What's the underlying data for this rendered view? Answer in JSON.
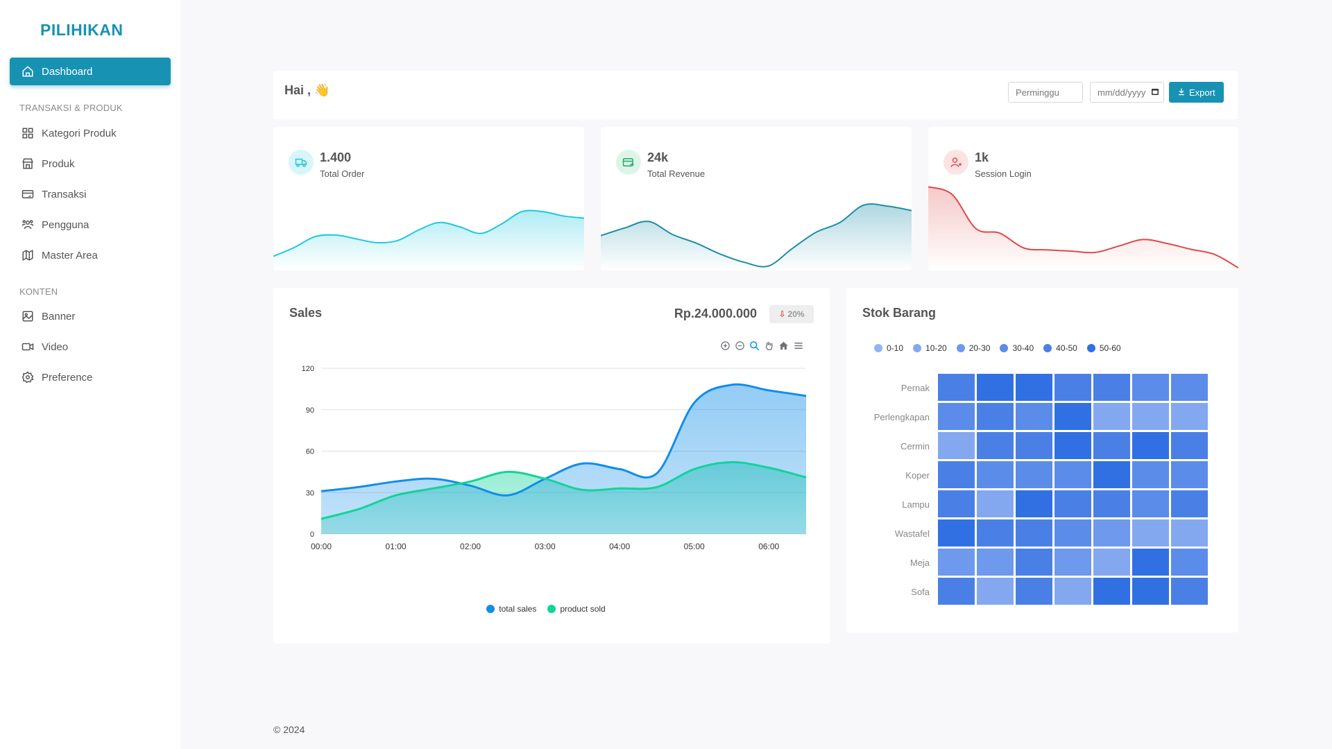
{
  "app": {
    "logo": "PILIHIKAN"
  },
  "sidebar": {
    "dashboard": "Dashboard",
    "section_transaksi": "TRANSAKSI & PRODUK",
    "kategori": "Kategori Produk",
    "produk": "Produk",
    "transaksi": "Transaksi",
    "pengguna": "Pengguna",
    "master_area": "Master Area",
    "section_konten": "KONTEN",
    "banner": "Banner",
    "video": "Video",
    "preference": "Preference"
  },
  "header": {
    "greeting": "Hai , 👋",
    "period_select": "Perminggu",
    "date_placeholder": "mm/dd/yyyy",
    "export_label": "Export"
  },
  "stats": {
    "orders": {
      "value": "1.400",
      "label": "Total Order",
      "color": "#1ec8e0"
    },
    "revenue": {
      "value": "24k",
      "label": "Total Revenue",
      "color": "#1b8ea8"
    },
    "sessions": {
      "value": "1k",
      "label": "Session Login",
      "color": "#e04848"
    }
  },
  "sales": {
    "title": "Sales",
    "amount": "Rp.24.000.000",
    "change": "20%"
  },
  "stock": {
    "title": "Stok Barang"
  },
  "footer": {
    "copyright": "© 2024"
  },
  "chart_data": [
    {
      "type": "area",
      "x": [
        "00:00",
        "00:30",
        "01:00",
        "01:30",
        "02:00",
        "02:30",
        "03:00",
        "03:30",
        "04:00",
        "04:30",
        "05:00",
        "05:30",
        "06:00",
        "06:30"
      ],
      "series": [
        {
          "name": "total sales",
          "color": "#108ee9",
          "values": [
            31,
            34,
            38,
            40,
            35,
            28,
            40,
            51,
            47,
            44,
            95,
            108,
            104,
            100
          ]
        },
        {
          "name": "product sold",
          "color": "#11d49a",
          "values": [
            11,
            18,
            28,
            33,
            38,
            45,
            40,
            32,
            33,
            34,
            47,
            52,
            48,
            41
          ]
        }
      ],
      "ylim": [
        0,
        120
      ],
      "yticks": [
        0,
        30,
        60,
        90,
        120
      ],
      "xticks": [
        "00:00",
        "01:00",
        "02:00",
        "03:00",
        "04:00",
        "05:00",
        "06:00"
      ],
      "grid": true,
      "legend": "bottom"
    },
    {
      "type": "heatmap",
      "rows": [
        "Pernak",
        "Perlengkapan",
        "Cermin",
        "Koper",
        "Lampu",
        "Wastafel",
        "Meja",
        "Sofa"
      ],
      "columns": 7,
      "values": [
        [
          40,
          55,
          55,
          45,
          40,
          35,
          35
        ],
        [
          35,
          45,
          30,
          50,
          15,
          15,
          15
        ],
        [
          10,
          40,
          40,
          55,
          40,
          55,
          40
        ],
        [
          40,
          30,
          35,
          35,
          55,
          35,
          30
        ],
        [
          40,
          10,
          55,
          45,
          45,
          35,
          45
        ],
        [
          50,
          40,
          40,
          30,
          25,
          15,
          15
        ],
        [
          25,
          20,
          40,
          25,
          10,
          50,
          35
        ],
        [
          40,
          10,
          45,
          10,
          55,
          55,
          40
        ]
      ],
      "legend": [
        "0-10",
        "10-20",
        "20-30",
        "30-40",
        "40-50",
        "50-60"
      ],
      "legend_colors": [
        "#93b4f2",
        "#84a8f0",
        "#6e99ec",
        "#5b8ce9",
        "#4a80e6",
        "#3170e2"
      ],
      "legend_position": "top"
    },
    {
      "type": "area",
      "name": "orders-sparkline",
      "values": [
        26,
        42,
        62,
        65,
        58,
        51,
        55,
        74,
        88,
        80,
        68,
        85,
        108,
        108,
        100,
        96
      ],
      "ylim": [
        0,
        140
      ]
    },
    {
      "type": "area",
      "name": "revenue-sparkline",
      "values": [
        64,
        78,
        90,
        66,
        50,
        30,
        15,
        8,
        40,
        70,
        88,
        120,
        118,
        110
      ],
      "ylim": [
        0,
        140
      ]
    },
    {
      "type": "area",
      "name": "sessions-sparkline",
      "values": [
        130,
        118,
        65,
        58,
        35,
        32,
        30,
        28,
        38,
        48,
        42,
        33,
        25,
        4
      ],
      "ylim": [
        0,
        140
      ]
    }
  ]
}
